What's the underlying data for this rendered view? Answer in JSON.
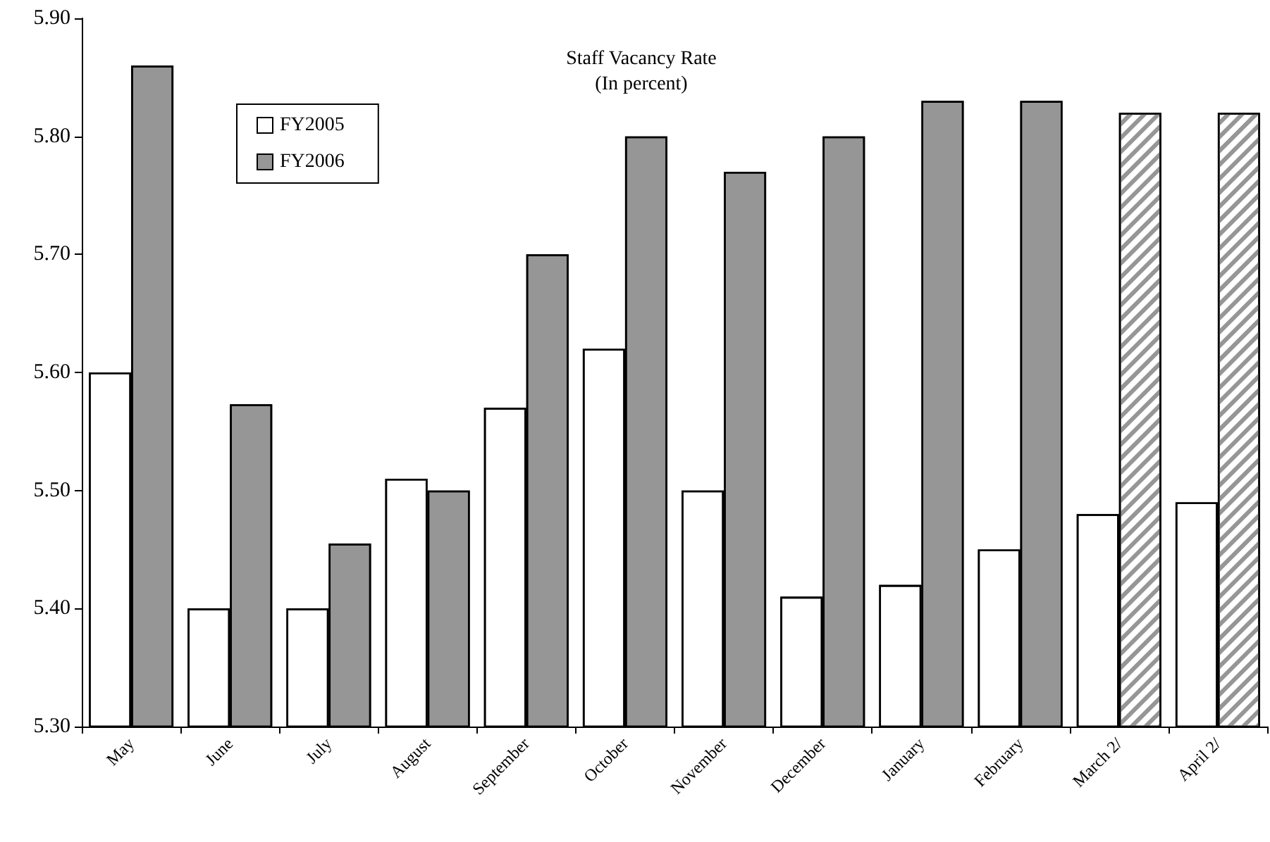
{
  "chart_data": {
    "type": "bar",
    "title": "Staff Vacancy Rate",
    "subtitle": "(In percent)",
    "categories": [
      "May",
      "June",
      "July",
      "August",
      "September",
      "October",
      "November",
      "December",
      "January",
      "February",
      "March 2/",
      "April 2/"
    ],
    "series": [
      {
        "name": "FY2005",
        "color": "#ffffff",
        "values": [
          5.6,
          5.4,
          5.4,
          5.51,
          5.57,
          5.62,
          5.5,
          5.41,
          5.42,
          5.45,
          5.48,
          5.49
        ]
      },
      {
        "name": "FY2006",
        "color": "#969696",
        "colors": [
          "#969696",
          "#969696",
          "#969696",
          "#969696",
          "#969696",
          "#969696",
          "#969696",
          "#969696",
          "#969696",
          "#969696",
          "#ffffff",
          "#ffffff"
        ],
        "values": [
          5.86,
          5.573,
          5.455,
          5.5,
          5.7,
          5.8,
          5.77,
          5.8,
          5.83,
          5.83,
          5.82,
          5.82
        ]
      }
    ],
    "ylim": [
      5.3,
      5.9
    ],
    "yticks": [
      {
        "value": 5.3,
        "label": "5.30"
      },
      {
        "value": 5.4,
        "label": "5.40"
      },
      {
        "value": 5.5,
        "label": "5.50"
      },
      {
        "value": 5.6,
        "label": "5.60"
      },
      {
        "value": 5.7,
        "label": "5.70"
      },
      {
        "value": 5.8,
        "label": "5.80"
      },
      {
        "value": 5.9,
        "label": "5.90"
      }
    ],
    "grid": false,
    "legend": "top left"
  }
}
